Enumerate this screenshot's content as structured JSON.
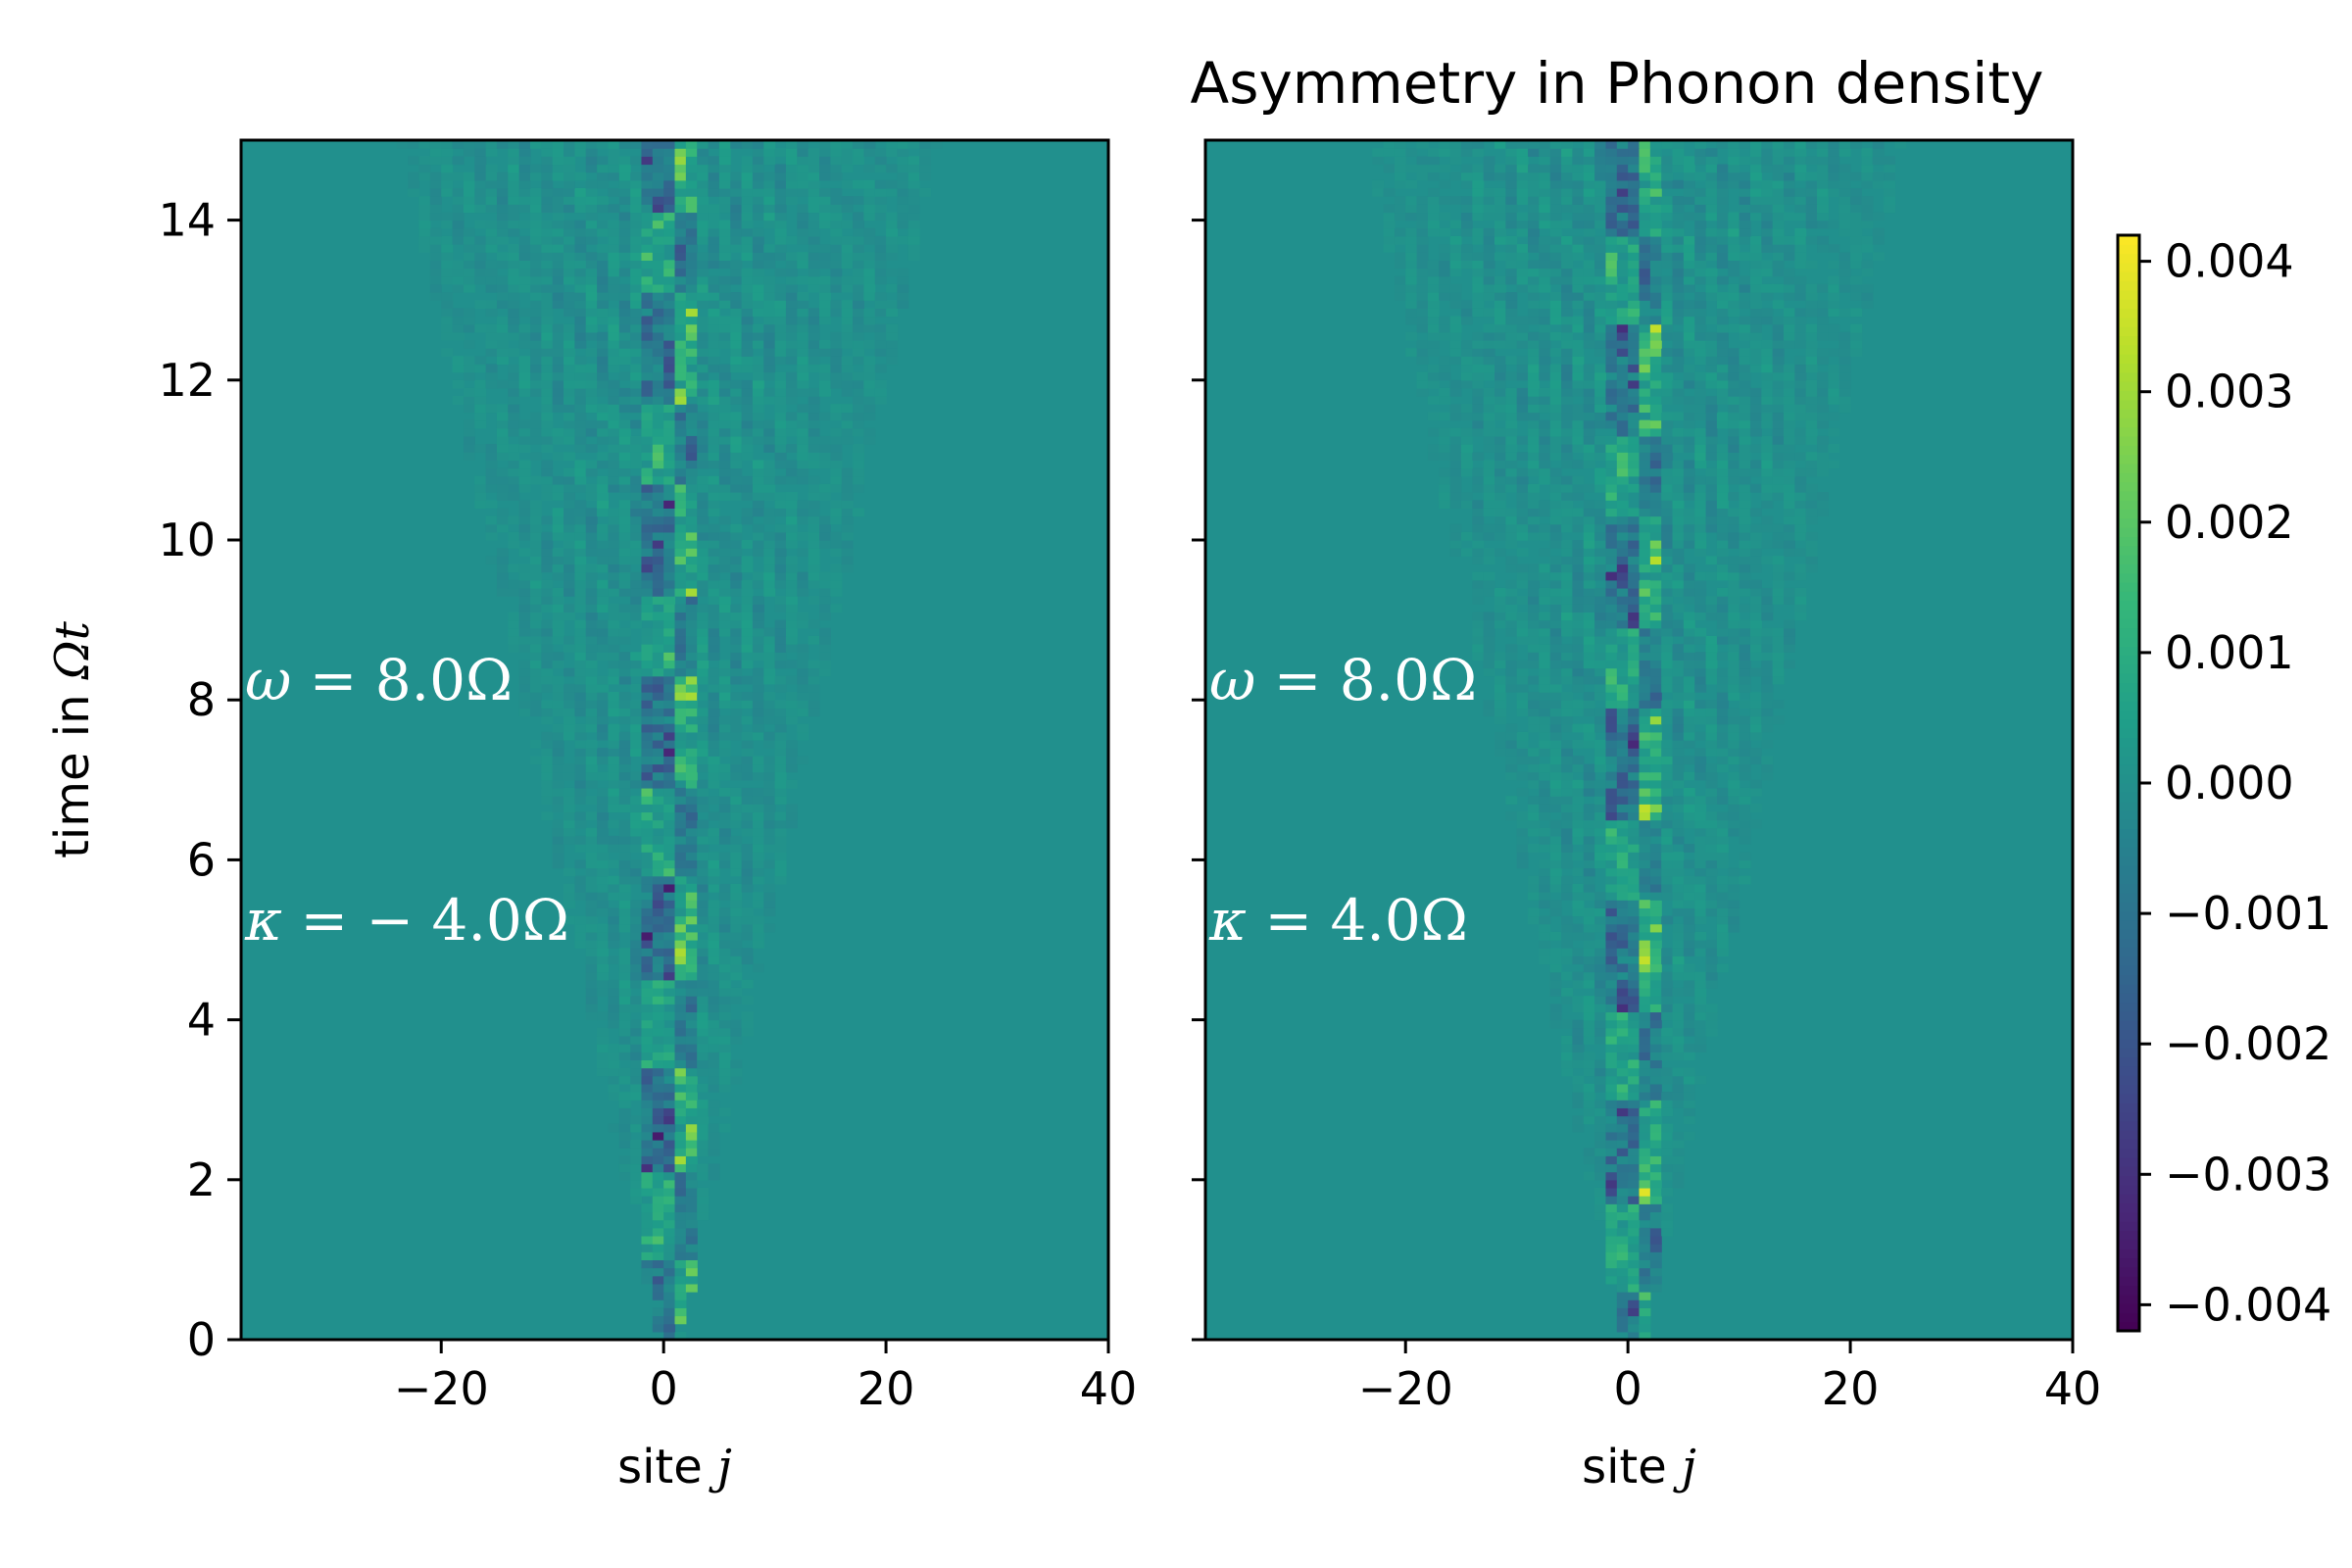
{
  "chart_data": {
    "type": "heatmap",
    "title": "Asymmetry in Phonon density",
    "colormap": "viridis",
    "colors": {
      "background": "#21908d",
      "high": "#fde725",
      "low": "#440154",
      "axis": "#000000",
      "annotation": "#ffffff"
    },
    "xlim": [
      -38,
      40
    ],
    "ylim": [
      0,
      15
    ],
    "panels": [
      {
        "xlabel_prefix": "site ",
        "xlabel_var": "j",
        "ylabel_prefix": "time in ",
        "ylabel_var": "Ωt",
        "xticks": [
          -20,
          0,
          20,
          40
        ],
        "yticks": [
          0,
          2,
          4,
          6,
          8,
          10,
          12,
          14
        ],
        "annotations": [
          {
            "symbol": "ω",
            "rest": " = 8.0Ω",
            "y": 8.0
          },
          {
            "symbol": "κ",
            "rest": " = − 4.0Ω",
            "y": 5.0
          }
        ]
      },
      {
        "xlabel_prefix": "site ",
        "xlabel_var": "j",
        "xticks": [
          -20,
          0,
          20,
          40
        ],
        "yticks": [
          0,
          2,
          4,
          6,
          8,
          10,
          12,
          14
        ],
        "annotations": [
          {
            "symbol": "ω",
            "rest": " = 8.0Ω",
            "y": 8.0
          },
          {
            "symbol": "κ",
            "rest": " = 4.0Ω",
            "y": 5.0
          }
        ]
      }
    ],
    "colorbar": {
      "range": [
        -0.0042,
        0.0042
      ],
      "ticks": [
        {
          "value": 0.004,
          "label": "0.004"
        },
        {
          "value": 0.003,
          "label": "0.003"
        },
        {
          "value": 0.002,
          "label": "0.002"
        },
        {
          "value": 0.001,
          "label": "0.001"
        },
        {
          "value": 0.0,
          "label": "0.000"
        },
        {
          "value": -0.001,
          "label": "−0.001"
        },
        {
          "value": -0.002,
          "label": "−0.002"
        },
        {
          "value": -0.003,
          "label": "−0.003"
        },
        {
          "value": -0.004,
          "label": "−0.004"
        }
      ]
    }
  }
}
